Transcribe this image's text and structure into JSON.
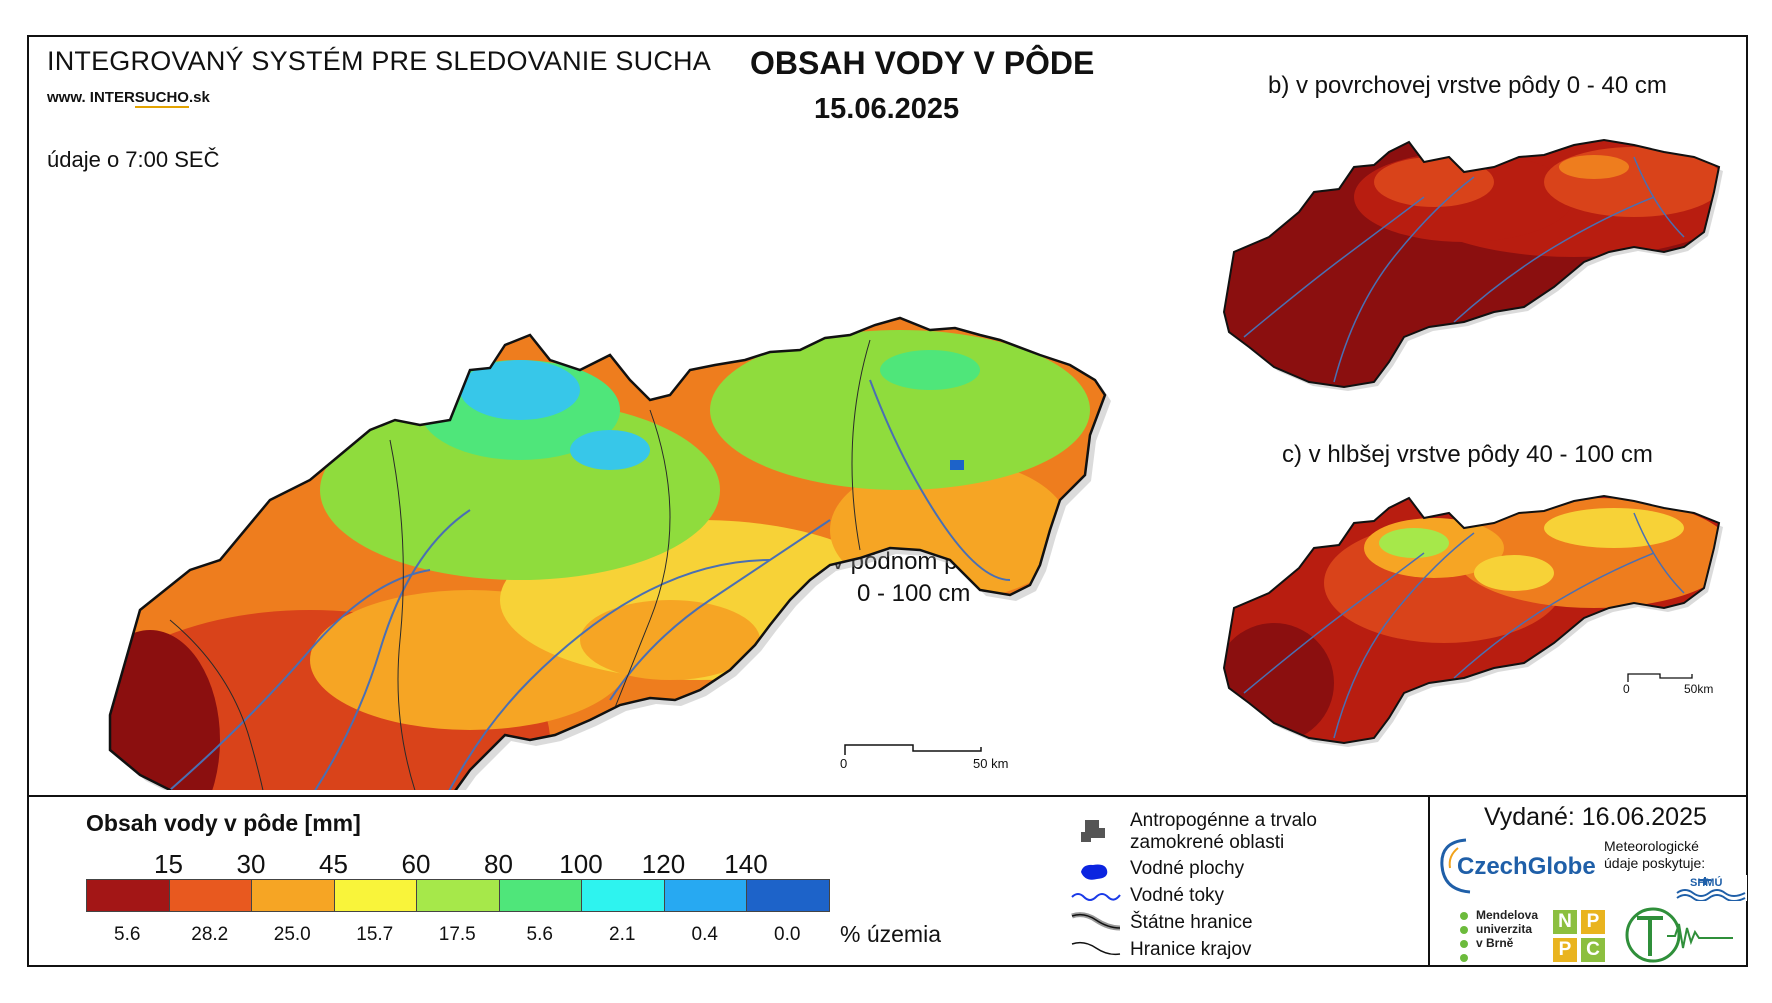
{
  "header": {
    "system_title": "INTEGROVANÝ SYSTÉM PRE SLEDOVANIE SUCHA",
    "website_prefix": "www. ",
    "website_a": "INTER",
    "website_b": "SUCHO",
    "website_suffix": ".sk",
    "time_note": "údaje o 7:00 SEČ",
    "title": "OBSAH VODY V PÔDE",
    "date": "15.06.2025"
  },
  "maps": {
    "a_line1": "a) v pôdnom profile",
    "a_line2": "0 - 100 cm",
    "b_label": "b) v povrchovej vrstve pôdy 0 - 40 cm",
    "c_label": "c) v hlbšej vrstve pôdy 40 - 100 cm",
    "scale_main": {
      "zero": "0",
      "end": "50 km"
    },
    "scale_small": {
      "zero": "0",
      "end": "50km"
    }
  },
  "legend": {
    "title": "Obsah vody v pôde  [mm]",
    "thresholds": [
      "15",
      "30",
      "45",
      "60",
      "80",
      "100",
      "120",
      "140"
    ],
    "colors": [
      "#a31616",
      "#e8591f",
      "#f6a524",
      "#f9f43a",
      "#a6e84a",
      "#4fe67a",
      "#2ef3ef",
      "#27a9f2",
      "#1d63c9"
    ],
    "percent_values": [
      "5.6",
      "28.2",
      "25.0",
      "15.7",
      "17.5",
      "5.6",
      "2.1",
      "0.4",
      "0.0"
    ],
    "percent_unit": "% územia",
    "map_colors": {
      "dark_red": "#8b0f0f",
      "red": "#b81d10",
      "orange_red": "#d9431a",
      "orange": "#ee7d1e",
      "yellow": "#f7d237",
      "green": "#8fdc3d",
      "cyan": "#37c7e9",
      "river": "#4a6fb3"
    }
  },
  "symbols": {
    "anthropogenic": "Antropogénne a trvalo zamokrené oblasti",
    "anthropogenic_line1": "Antropogénne a trvalo",
    "anthropogenic_line2": "zamokrené oblasti",
    "water_bodies": "Vodné plochy",
    "water_courses": "Vodné toky",
    "state_borders": "Štátne hranice",
    "region_borders": "Hranice krajov"
  },
  "footer": {
    "issued": "Vydané: 16.06.2025",
    "provider_note": "Meteorologické údaje poskytuje:",
    "czechglobe": "CzechGlobe",
    "mendel": [
      "Mendelova",
      "univerzita",
      "v Brně"
    ],
    "npc": [
      "N",
      "P",
      "P",
      "C"
    ],
    "shmu": "SHMÚ"
  }
}
